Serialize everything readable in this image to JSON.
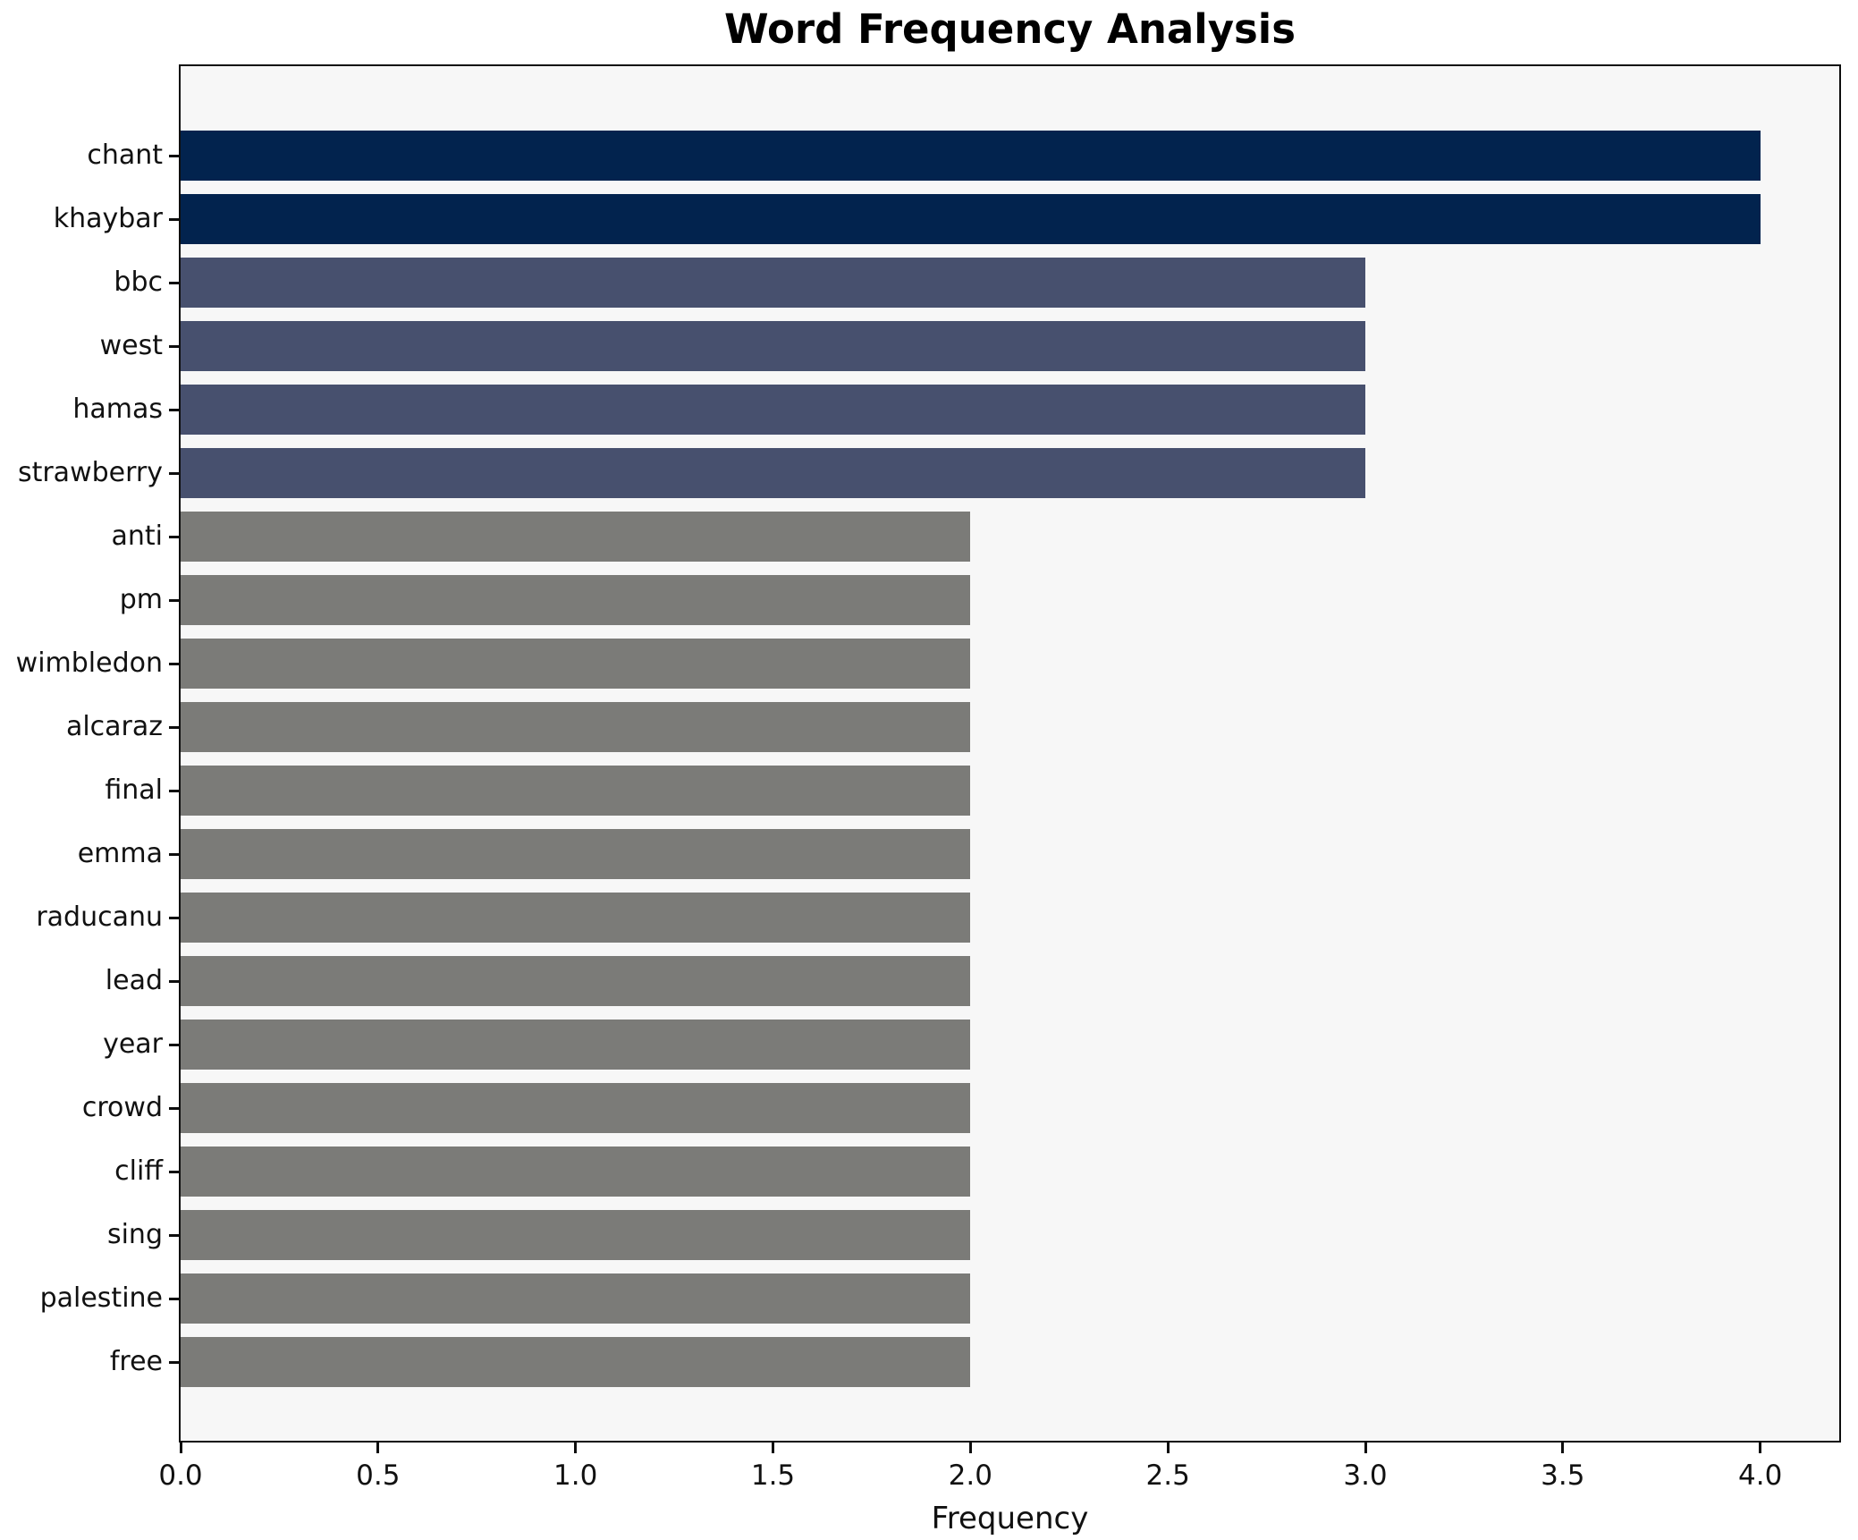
{
  "chart_data": {
    "type": "bar",
    "orientation": "horizontal",
    "title": "Word Frequency Analysis",
    "xlabel": "Frequency",
    "ylabel": "",
    "categories": [
      "chant",
      "khaybar",
      "bbc",
      "west",
      "hamas",
      "strawberry",
      "anti",
      "pm",
      "wimbledon",
      "alcaraz",
      "final",
      "emma",
      "raducanu",
      "lead",
      "year",
      "crowd",
      "cliff",
      "sing",
      "palestine",
      "free"
    ],
    "values": [
      4,
      4,
      3,
      3,
      3,
      3,
      2,
      2,
      2,
      2,
      2,
      2,
      2,
      2,
      2,
      2,
      2,
      2,
      2,
      2
    ],
    "bar_colors": [
      "#02234e",
      "#02234e",
      "#47506e",
      "#47506e",
      "#47506e",
      "#47506e",
      "#7b7b78",
      "#7b7b78",
      "#7b7b78",
      "#7b7b78",
      "#7b7b78",
      "#7b7b78",
      "#7b7b78",
      "#7b7b78",
      "#7b7b78",
      "#7b7b78",
      "#7b7b78",
      "#7b7b78",
      "#7b7b78",
      "#7b7b78"
    ],
    "xlim": [
      0,
      4.2
    ],
    "xticks": [
      0,
      0.5,
      1,
      1.5,
      2,
      2.5,
      3,
      3.5,
      4
    ],
    "xtick_labels": [
      "0.0",
      "0.5",
      "1.0",
      "1.5",
      "2.0",
      "2.5",
      "3.0",
      "3.5",
      "4.0"
    ],
    "grid": false,
    "legend": null,
    "colors": {
      "value_4": "#02234e",
      "value_3": "#47506e",
      "value_2": "#7b7b78",
      "plot_background": "#f7f7f7",
      "figure_background": "#ffffff",
      "spine": "#0e0e0e",
      "text": "#111111"
    }
  }
}
